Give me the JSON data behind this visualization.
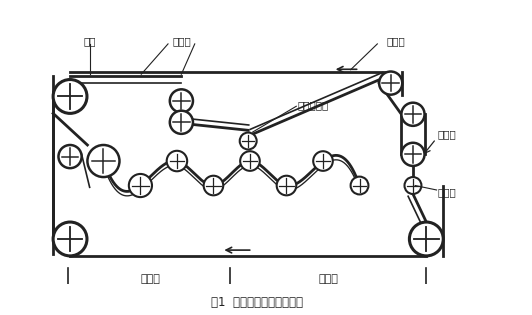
{
  "title": "图1  带式压滤机工作原理图",
  "labels": {
    "jin_ni": "进泥",
    "zhong_li_qu": "重力区",
    "xie_xing_qu": "楔形脱水区",
    "shang_lv_dai": "上滤带",
    "chu_ni_bing": "出泥饼",
    "xia_lv_dai": "下滤带",
    "di_ya_qu": "低压区",
    "gao_ya_qu": "高压区"
  },
  "bg_color": "#ffffff",
  "line_color": "#222222",
  "fig_width": 5.32,
  "fig_height": 3.15,
  "dpi": 100
}
